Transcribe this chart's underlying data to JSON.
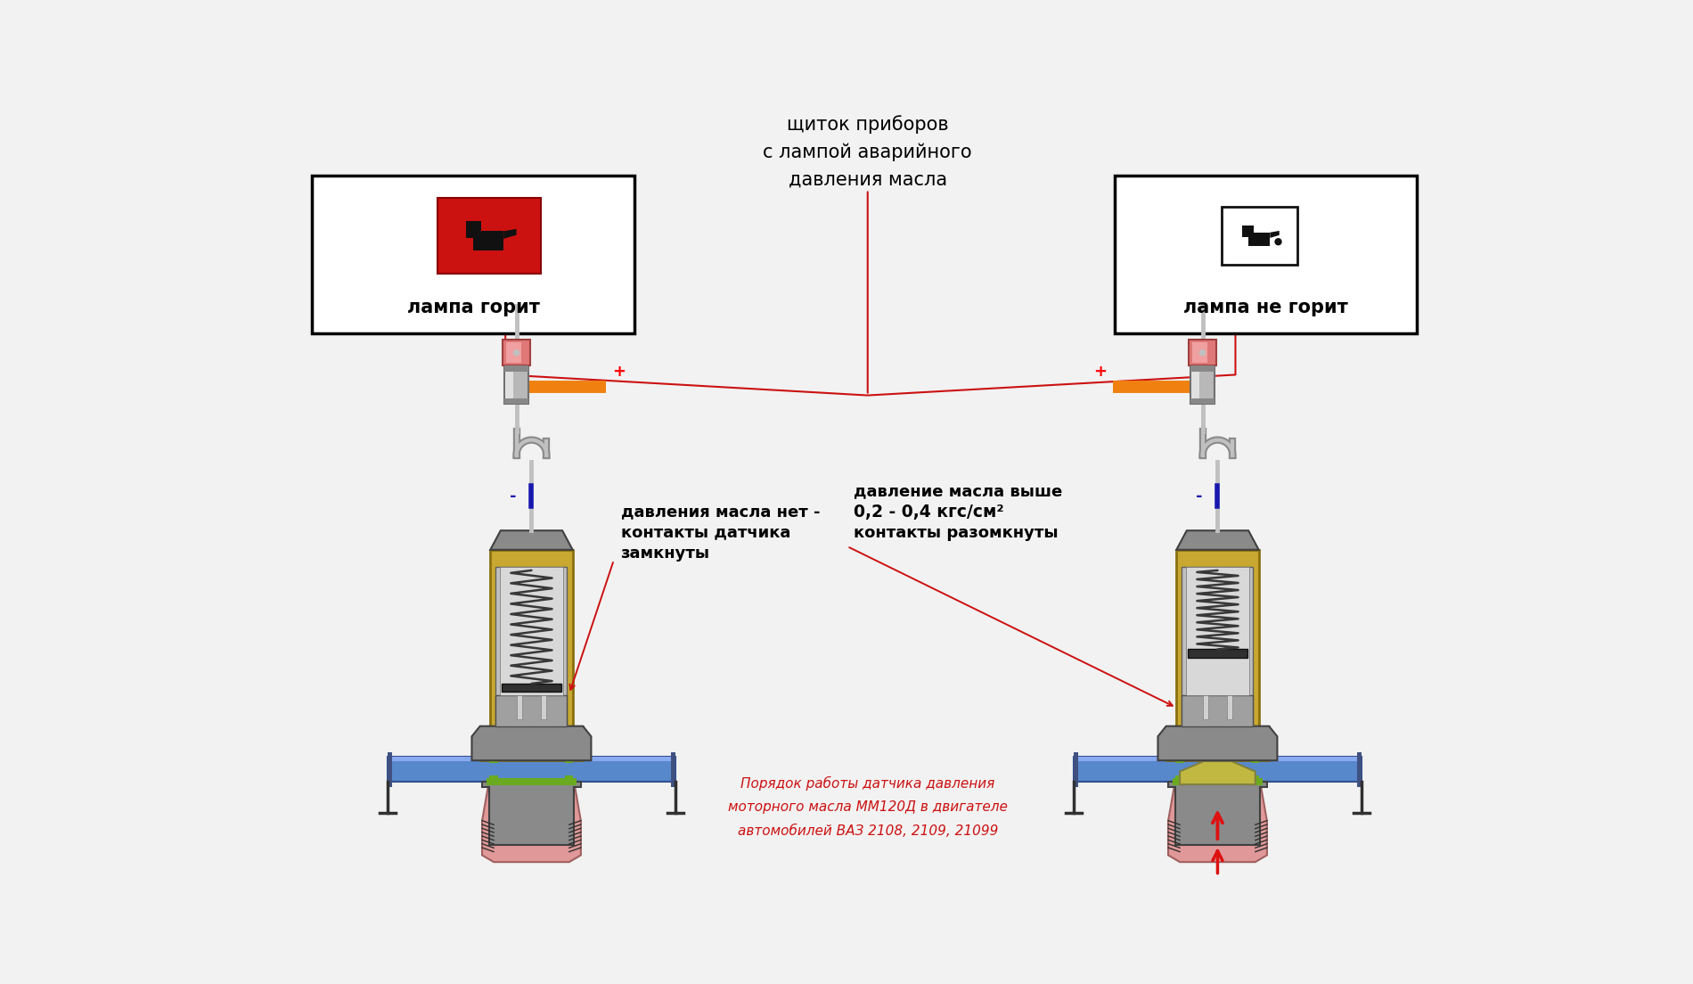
{
  "bg_color": "#f2f2f2",
  "title_text": "щиток приборов\nс лампой аварийного\nдавления масла",
  "left_label": "лампа горит",
  "right_label": "лампа не горит",
  "ann_left_1": "давления масла нет -",
  "ann_left_2": "контакты датчика",
  "ann_left_3": "замкнуты",
  "ann_right_1": "давление масла выше",
  "ann_right_2": "0,2 - 0,4 кгс/см²",
  "ann_right_3": "контакты разомкнуты",
  "bot_1": "Порядок работы датчика давления",
  "bot_2": "моторного масла ММ120Д в двигателе",
  "bot_3": "автомобилей ВАЗ 2108, 2109, 21099",
  "gold": "#c8a830",
  "gold_dark": "#8a7010",
  "gray_body": "#8a8a8a",
  "gray_light": "#c0c0c0",
  "gray_med": "#a0a0a0",
  "blue_pipe": "#5888cc",
  "pink_base": "#e09898",
  "green_ring": "#6aaa20",
  "spring_col": "#383838",
  "wire_blue": "#1818b0",
  "wire_orange": "#f08010",
  "red_arrow": "#dd1111",
  "red_line": "#cc1111",
  "dark_olive": "#808040",
  "olive": "#c0b840"
}
